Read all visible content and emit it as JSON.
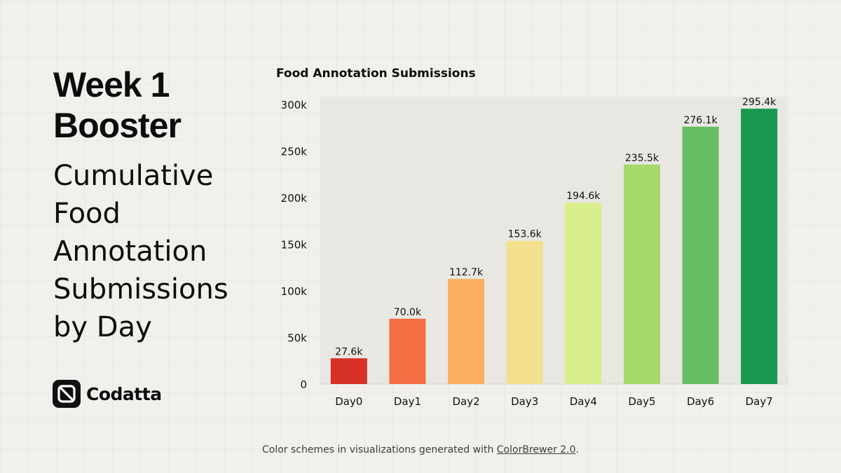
{
  "heading": {
    "line1": "Week 1",
    "line2": "Booster"
  },
  "subheading": [
    "Cumulative",
    "Food",
    "Annotation",
    "Submissions",
    "by Day"
  ],
  "brand": {
    "name": "Codatta"
  },
  "footer": {
    "text": "Color schemes in visualizations generated with ",
    "link_text": "ColorBrewer 2.0",
    "suffix": "."
  },
  "chart_data": {
    "type": "bar",
    "title": "Food Annotation Submissions",
    "categories": [
      "Day0",
      "Day1",
      "Day2",
      "Day3",
      "Day4",
      "Day5",
      "Day6",
      "Day7"
    ],
    "values": [
      27600,
      70000,
      112700,
      153600,
      194600,
      235500,
      276100,
      295400
    ],
    "value_labels": [
      "27.6k",
      "70.0k",
      "112.7k",
      "153.6k",
      "194.6k",
      "235.5k",
      "276.1k",
      "295.4k"
    ],
    "colors": [
      "#d73027",
      "#f46d43",
      "#fdae61",
      "#f3e08f",
      "#d9ef8b",
      "#a6d96a",
      "#66bd63",
      "#1a9850"
    ],
    "yticks": [
      0,
      50000,
      100000,
      150000,
      200000,
      250000,
      300000
    ],
    "ytick_labels": [
      "0",
      "50k",
      "100k",
      "150k",
      "200k",
      "250k",
      "300k"
    ],
    "ylim": [
      0,
      300000
    ],
    "xlabel": "",
    "ylabel": "",
    "grid": false
  }
}
